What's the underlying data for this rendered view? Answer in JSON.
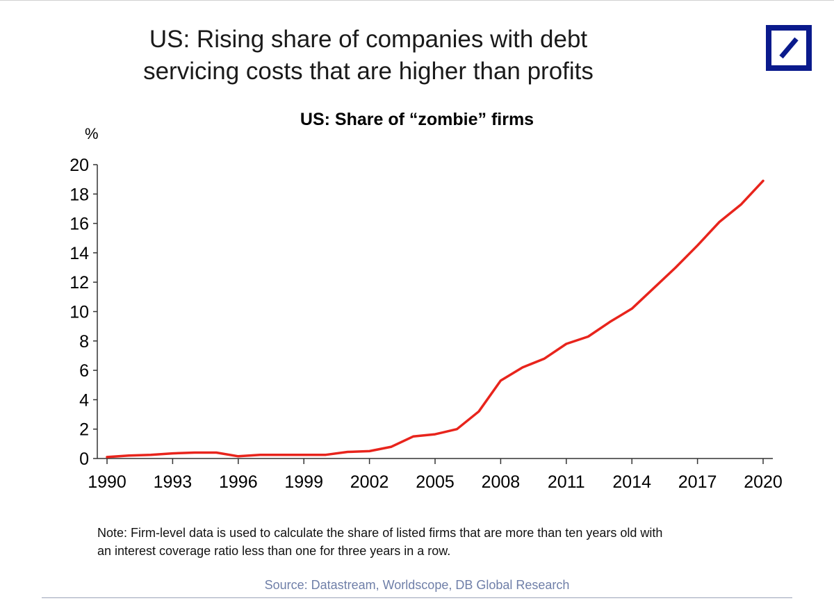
{
  "title_line1": "US: Rising share of companies with debt",
  "title_line2": "servicing costs that are higher than profits",
  "logo": {
    "icon": "deutsche-bank-slash-logo",
    "color": "#0a1a8c"
  },
  "note_line1": "Note: Firm-level data is used to calculate the share of listed firms that are more than ten years old with",
  "note_line2": "an interest coverage ratio less than one for three years in a row.",
  "source": "Source: Datastream, Worldscope, DB Global Research",
  "chart_data": {
    "type": "line",
    "title": "US: Share of “zombie” firms",
    "ylabel": "%",
    "xlabel": "",
    "xlim": [
      1990,
      2020
    ],
    "ylim": [
      0,
      20
    ],
    "x_ticks": [
      1990,
      1993,
      1996,
      1999,
      2002,
      2005,
      2008,
      2011,
      2014,
      2017,
      2020
    ],
    "y_ticks": [
      0,
      2,
      4,
      6,
      8,
      10,
      12,
      14,
      16,
      18,
      20
    ],
    "grid": false,
    "series": [
      {
        "color": "#e8241c",
        "x": [
          1990,
          1991,
          1992,
          1993,
          1994,
          1995,
          1996,
          1997,
          1998,
          1999,
          2000,
          2001,
          2002,
          2003,
          2004,
          2005,
          2006,
          2007,
          2008,
          2009,
          2010,
          2011,
          2012,
          2013,
          2014,
          2015,
          2016,
          2017,
          2018,
          2019,
          2020
        ],
        "y": [
          0.1,
          0.2,
          0.25,
          0.35,
          0.4,
          0.4,
          0.15,
          0.25,
          0.25,
          0.25,
          0.25,
          0.45,
          0.5,
          0.8,
          1.5,
          1.65,
          2.0,
          3.2,
          5.3,
          6.2,
          6.8,
          7.8,
          8.3,
          9.3,
          10.2,
          11.6,
          13.0,
          14.5,
          16.1,
          17.3,
          18.9
        ]
      }
    ]
  }
}
